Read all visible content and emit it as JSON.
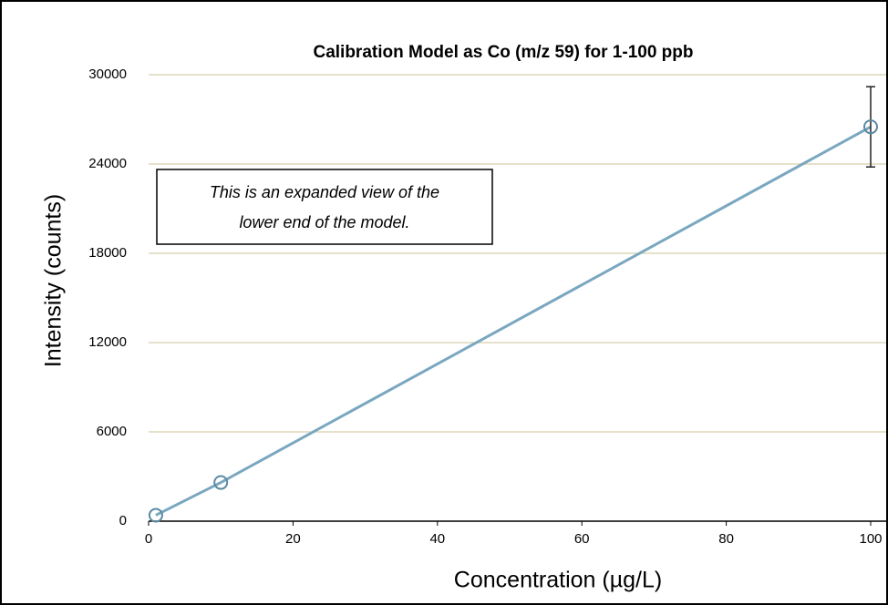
{
  "chart_data": {
    "type": "scatter-line",
    "title": "Calibration Model as Co (m/z 59) for 1-100 ppb",
    "xlabel": "Concentration (µg/L)",
    "ylabel": "Intensity (counts)",
    "annotation": [
      "This is an expanded view of the",
      "lower end of the model."
    ],
    "series": [
      {
        "name": "Co (m/z 59)",
        "color": "#7aa7c0",
        "x": [
          1,
          10,
          100
        ],
        "values": [
          400,
          2600,
          26500
        ],
        "errors": [
          null,
          null,
          2700
        ]
      }
    ],
    "xlim": [
      0,
      100
    ],
    "xticks": [
      0,
      20,
      40,
      60,
      80,
      100
    ],
    "ylim": [
      0,
      30000
    ],
    "yticks": [
      0,
      6000,
      12000,
      18000,
      24000,
      30000
    ],
    "grid": true
  }
}
